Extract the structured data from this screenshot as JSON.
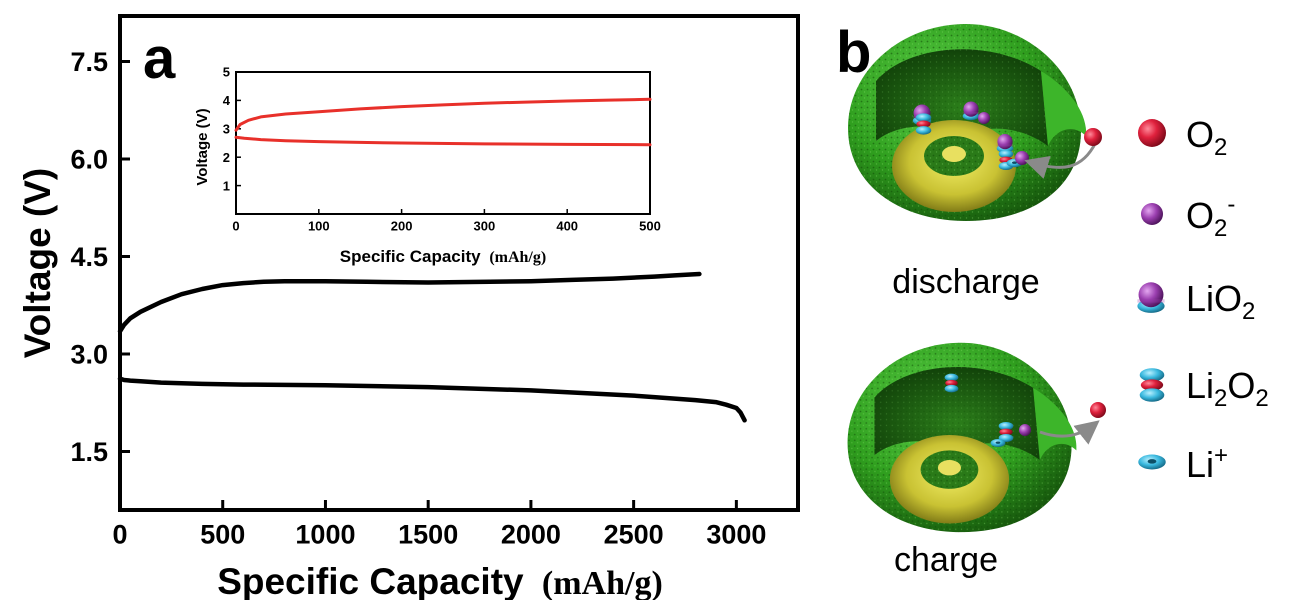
{
  "chart_data": [
    {
      "panel": "a",
      "type": "line",
      "xlabel": "Specific Capacity",
      "xunit": "(mAh/g)",
      "ylabel": "Voltage (V)",
      "xlim": [
        0,
        3300
      ],
      "ylim": [
        0.6,
        8.2
      ],
      "xticks": [
        "0",
        "500",
        "1000",
        "1500",
        "2000",
        "2500",
        "3000"
      ],
      "yticks": [
        "1.5",
        "3.0",
        "4.5",
        "6.0",
        "7.5"
      ],
      "series_color": "#000000",
      "series": [
        {
          "x": [
            0,
            20,
            50,
            100,
            200,
            300,
            400,
            500,
            600,
            700,
            800,
            1000,
            1200,
            1500,
            1800,
            2000,
            2200,
            2400,
            2600,
            2700,
            2820
          ],
          "y": [
            3.35,
            3.45,
            3.55,
            3.65,
            3.8,
            3.92,
            4.0,
            4.06,
            4.09,
            4.11,
            4.12,
            4.12,
            4.11,
            4.1,
            4.11,
            4.12,
            4.14,
            4.16,
            4.19,
            4.21,
            4.23
          ]
        },
        {
          "x": [
            0,
            20,
            50,
            100,
            200,
            400,
            600,
            1000,
            1500,
            2000,
            2500,
            2800,
            2900,
            2950,
            3000,
            3020,
            3040
          ],
          "y": [
            2.62,
            2.6,
            2.59,
            2.58,
            2.56,
            2.54,
            2.53,
            2.52,
            2.49,
            2.44,
            2.36,
            2.29,
            2.26,
            2.22,
            2.17,
            2.1,
            1.98
          ]
        }
      ]
    },
    {
      "panel": "inset",
      "type": "line",
      "xlabel": "Specific Capacity",
      "xunit": "(mAh/g)",
      "ylabel": "Voltage (V)",
      "xlim": [
        0,
        500
      ],
      "ylim": [
        0,
        5
      ],
      "xticks": [
        "0",
        "100",
        "200",
        "300",
        "400",
        "500"
      ],
      "yticks": [
        "1",
        "2",
        "3",
        "4",
        "5"
      ],
      "series_color": "#e8302a",
      "series": [
        {
          "x": [
            0,
            5,
            15,
            30,
            60,
            100,
            150,
            200,
            250,
            300,
            350,
            400,
            450,
            500
          ],
          "y": [
            2.95,
            3.15,
            3.3,
            3.42,
            3.52,
            3.6,
            3.7,
            3.78,
            3.84,
            3.9,
            3.94,
            3.98,
            4.01,
            4.04
          ]
        },
        {
          "x": [
            0,
            10,
            30,
            60,
            100,
            150,
            200,
            300,
            400,
            500
          ],
          "y": [
            2.7,
            2.67,
            2.62,
            2.58,
            2.55,
            2.52,
            2.5,
            2.47,
            2.45,
            2.44
          ]
        }
      ]
    }
  ],
  "panel_b": {
    "letter": "b",
    "caption_discharge": "discharge",
    "caption_charge": "charge",
    "colors": {
      "shell": "#2f9e1e",
      "shell_dark": "#1f6d12",
      "core": "#d6d23a",
      "o2": "#e0213d",
      "superoxide": "#9b3fb0",
      "lithium": "#3ab9df"
    },
    "legend": [
      {
        "icon": "o2-sphere-icon",
        "label": "O",
        "sub": "2",
        "sup": ""
      },
      {
        "icon": "superoxide-sphere-icon",
        "label": "O",
        "sub": "2",
        "sup": "-"
      },
      {
        "icon": "lio2-cluster-icon",
        "label": "LiO",
        "sub": "2",
        "sup": ""
      },
      {
        "icon": "li2o2-stack-icon",
        "label": "Li",
        "sub": "2",
        "tail": "O",
        "sub2": "2"
      },
      {
        "icon": "li-ion-disc-icon",
        "label": "Li",
        "sub": "",
        "sup": "+"
      }
    ]
  }
}
